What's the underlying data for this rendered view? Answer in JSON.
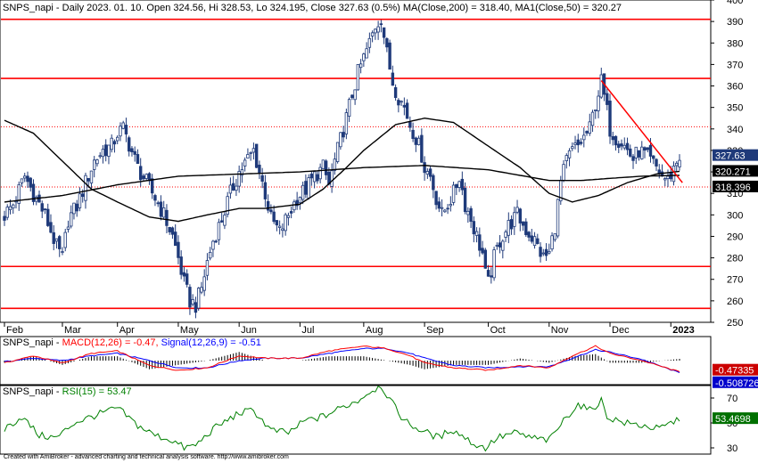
{
  "header": {
    "main_title": "SNPS_napi - Daily 2023. 01. 10. Open 324.56, Hi 328.53, Lo 324.195, Close 327.63 (0.5%) MA(Close,200) = 318.40, MA1(Close,50) = 320.27",
    "macd_prefix": "SNPS_napi - ",
    "macd_label": "MACD(12,26) = -0.47,",
    "signal_label": " Signal(12,26,9) = -0.51",
    "rsi_prefix": "SNPS_napi - ",
    "rsi_label": "RSI(15) = 53.47"
  },
  "footer": "Created with AmiBroker - advanced charting and technical analysis software. http://www.amibroker.com",
  "colors": {
    "candle": "#1f3a7a",
    "ma": "#000000",
    "support": "#ff0000",
    "trend": "#ff0000",
    "macd": "#ff0000",
    "signal": "#0000ff",
    "hist": "#000000",
    "rsi": "#008000",
    "last_close_badge": "#1f3a7a",
    "ma_badge": "#000000",
    "macd_badge": "#cc0000",
    "signal_badge": "#0000cc",
    "rsi_badge": "#007000"
  },
  "chart_data": [
    {
      "type": "candlestick",
      "title": "SNPS_napi - Daily",
      "ylim": [
        250,
        400
      ],
      "y_ticks": [
        250,
        260,
        270,
        280,
        290,
        300,
        310,
        320,
        330,
        340,
        350,
        360,
        370,
        380,
        390,
        400
      ],
      "x_ticks": [
        "Feb",
        "Mar",
        "Apr",
        "May",
        "Jun",
        "Jul",
        "Aug",
        "Sep",
        "Oct",
        "Nov",
        "Dec",
        "2023"
      ],
      "x_tick_index": [
        0,
        20,
        39,
        60,
        81,
        102,
        124,
        145,
        167,
        188,
        209,
        230
      ],
      "approx_close": [
        [
          0,
          300
        ],
        [
          3,
          305
        ],
        [
          7,
          318
        ],
        [
          10,
          310
        ],
        [
          14,
          300
        ],
        [
          18,
          285
        ],
        [
          20,
          280
        ],
        [
          22,
          298
        ],
        [
          25,
          304
        ],
        [
          28,
          315
        ],
        [
          31,
          325
        ],
        [
          34,
          330
        ],
        [
          37,
          332
        ],
        [
          39,
          338
        ],
        [
          41,
          340
        ],
        [
          43,
          333
        ],
        [
          46,
          322
        ],
        [
          49,
          315
        ],
        [
          52,
          308
        ],
        [
          55,
          300
        ],
        [
          58,
          290
        ],
        [
          60,
          280
        ],
        [
          62,
          268
        ],
        [
          64,
          260
        ],
        [
          66,
          258
        ],
        [
          68,
          266
        ],
        [
          70,
          278
        ],
        [
          72,
          288
        ],
        [
          75,
          298
        ],
        [
          78,
          310
        ],
        [
          81,
          320
        ],
        [
          84,
          326
        ],
        [
          86,
          330
        ],
        [
          88,
          320
        ],
        [
          90,
          310
        ],
        [
          92,
          298
        ],
        [
          95,
          292
        ],
        [
          98,
          300
        ],
        [
          101,
          308
        ],
        [
          104,
          312
        ],
        [
          107,
          318
        ],
        [
          110,
          322
        ],
        [
          112,
          314
        ],
        [
          114,
          325
        ],
        [
          116,
          335
        ],
        [
          118,
          345
        ],
        [
          120,
          356
        ],
        [
          122,
          366
        ],
        [
          124,
          373
        ],
        [
          126,
          380
        ],
        [
          128,
          388
        ],
        [
          130,
          392
        ],
        [
          132,
          375
        ],
        [
          134,
          362
        ],
        [
          136,
          355
        ],
        [
          138,
          350
        ],
        [
          140,
          342
        ],
        [
          142,
          336
        ],
        [
          144,
          328
        ],
        [
          145,
          322
        ],
        [
          147,
          318
        ],
        [
          149,
          308
        ],
        [
          151,
          300
        ],
        [
          153,
          305
        ],
        [
          155,
          310
        ],
        [
          157,
          318
        ],
        [
          159,
          305
        ],
        [
          161,
          298
        ],
        [
          163,
          290
        ],
        [
          165,
          282
        ],
        [
          166,
          272
        ],
        [
          167,
          268
        ],
        [
          169,
          280
        ],
        [
          171,
          288
        ],
        [
          174,
          295
        ],
        [
          177,
          300
        ],
        [
          180,
          293
        ],
        [
          183,
          288
        ],
        [
          186,
          280
        ],
        [
          188,
          282
        ],
        [
          190,
          295
        ],
        [
          192,
          315
        ],
        [
          194,
          325
        ],
        [
          196,
          330
        ],
        [
          198,
          332
        ],
        [
          200,
          336
        ],
        [
          202,
          340
        ],
        [
          204,
          352
        ],
        [
          206,
          362
        ],
        [
          208,
          348
        ],
        [
          209,
          340
        ],
        [
          211,
          336
        ],
        [
          213,
          334
        ],
        [
          215,
          330
        ],
        [
          217,
          326
        ],
        [
          219,
          330
        ],
        [
          221,
          328
        ],
        [
          223,
          325
        ],
        [
          225,
          322
        ],
        [
          227,
          318
        ],
        [
          229,
          316
        ],
        [
          231,
          322
        ],
        [
          233,
          327.63
        ]
      ],
      "ma200": [
        [
          0,
          306
        ],
        [
          20,
          309
        ],
        [
          39,
          314
        ],
        [
          60,
          318
        ],
        [
          81,
          319
        ],
        [
          102,
          320
        ],
        [
          124,
          322
        ],
        [
          145,
          323
        ],
        [
          167,
          321
        ],
        [
          188,
          316
        ],
        [
          199,
          316
        ],
        [
          209,
          317
        ],
        [
          220,
          318
        ],
        [
          233,
          318.4
        ]
      ],
      "ma50": [
        [
          0,
          344
        ],
        [
          10,
          338
        ],
        [
          20,
          325
        ],
        [
          30,
          312
        ],
        [
          39,
          306
        ],
        [
          50,
          299
        ],
        [
          60,
          297
        ],
        [
          70,
          300
        ],
        [
          81,
          303
        ],
        [
          90,
          303
        ],
        [
          102,
          305
        ],
        [
          110,
          312
        ],
        [
          118,
          322
        ],
        [
          124,
          330
        ],
        [
          135,
          342
        ],
        [
          145,
          345
        ],
        [
          155,
          343
        ],
        [
          167,
          332
        ],
        [
          178,
          322
        ],
        [
          188,
          310
        ],
        [
          196,
          306
        ],
        [
          205,
          309
        ],
        [
          215,
          315
        ],
        [
          225,
          319
        ],
        [
          233,
          320.27
        ]
      ],
      "support_levels": [
        256.5,
        276,
        313,
        341,
        363.5,
        391
      ],
      "dotted_levels": [
        313,
        341
      ],
      "trendline": {
        "from": [
          206,
          362.5
        ],
        "to": [
          234,
          315
        ]
      },
      "last_close_badge": "327.63",
      "ma50_badge": "320.271",
      "ma200_badge": "318.396"
    },
    {
      "type": "line",
      "title": "MACD(12,26)",
      "ylim": [
        -1,
        1
      ],
      "macd": [
        [
          0,
          -0.1
        ],
        [
          10,
          0.2
        ],
        [
          20,
          -0.1
        ],
        [
          30,
          0.3
        ],
        [
          39,
          0.4
        ],
        [
          50,
          -0.2
        ],
        [
          60,
          -0.4
        ],
        [
          70,
          -0.3
        ],
        [
          81,
          0.2
        ],
        [
          90,
          0.1
        ],
        [
          102,
          0.1
        ],
        [
          112,
          0.4
        ],
        [
          124,
          0.6
        ],
        [
          132,
          0.5
        ],
        [
          140,
          0.2
        ],
        [
          145,
          -0.1
        ],
        [
          155,
          -0.3
        ],
        [
          167,
          -0.4
        ],
        [
          178,
          -0.2
        ],
        [
          188,
          -0.3
        ],
        [
          196,
          0.2
        ],
        [
          204,
          0.6
        ],
        [
          209,
          0.3
        ],
        [
          220,
          0.0
        ],
        [
          233,
          -0.47
        ]
      ],
      "signal": [
        [
          0,
          -0.05
        ],
        [
          10,
          0.1
        ],
        [
          20,
          0.0
        ],
        [
          30,
          0.2
        ],
        [
          39,
          0.3
        ],
        [
          50,
          0.0
        ],
        [
          60,
          -0.3
        ],
        [
          70,
          -0.3
        ],
        [
          81,
          0.0
        ],
        [
          90,
          0.1
        ],
        [
          102,
          0.1
        ],
        [
          112,
          0.3
        ],
        [
          124,
          0.5
        ],
        [
          132,
          0.5
        ],
        [
          140,
          0.3
        ],
        [
          145,
          0.1
        ],
        [
          155,
          -0.2
        ],
        [
          167,
          -0.3
        ],
        [
          178,
          -0.25
        ],
        [
          188,
          -0.25
        ],
        [
          196,
          0.1
        ],
        [
          204,
          0.45
        ],
        [
          209,
          0.35
        ],
        [
          220,
          0.05
        ],
        [
          233,
          -0.51
        ]
      ],
      "macd_badge": "-0.47335",
      "signal_badge": "-0.508726"
    },
    {
      "type": "line",
      "title": "RSI(15)",
      "ylim": [
        25,
        80
      ],
      "y_ticks": [
        30,
        50,
        70
      ],
      "rsi": [
        [
          0,
          45
        ],
        [
          6,
          55
        ],
        [
          12,
          40
        ],
        [
          18,
          38
        ],
        [
          24,
          50
        ],
        [
          30,
          55
        ],
        [
          39,
          62
        ],
        [
          46,
          48
        ],
        [
          52,
          40
        ],
        [
          58,
          36
        ],
        [
          62,
          30
        ],
        [
          66,
          32
        ],
        [
          72,
          45
        ],
        [
          81,
          58
        ],
        [
          86,
          60
        ],
        [
          92,
          44
        ],
        [
          98,
          42
        ],
        [
          104,
          52
        ],
        [
          110,
          55
        ],
        [
          116,
          62
        ],
        [
          122,
          68
        ],
        [
          126,
          75
        ],
        [
          130,
          80
        ],
        [
          134,
          65
        ],
        [
          138,
          52
        ],
        [
          142,
          46
        ],
        [
          146,
          42
        ],
        [
          150,
          38
        ],
        [
          154,
          45
        ],
        [
          158,
          40
        ],
        [
          162,
          33
        ],
        [
          166,
          30
        ],
        [
          170,
          38
        ],
        [
          176,
          42
        ],
        [
          182,
          38
        ],
        [
          188,
          36
        ],
        [
          194,
          55
        ],
        [
          198,
          65
        ],
        [
          202,
          60
        ],
        [
          206,
          68
        ],
        [
          208,
          55
        ],
        [
          214,
          50
        ],
        [
          220,
          48
        ],
        [
          226,
          45
        ],
        [
          233,
          53.47
        ]
      ],
      "rsi_badge": "53.4698"
    }
  ]
}
